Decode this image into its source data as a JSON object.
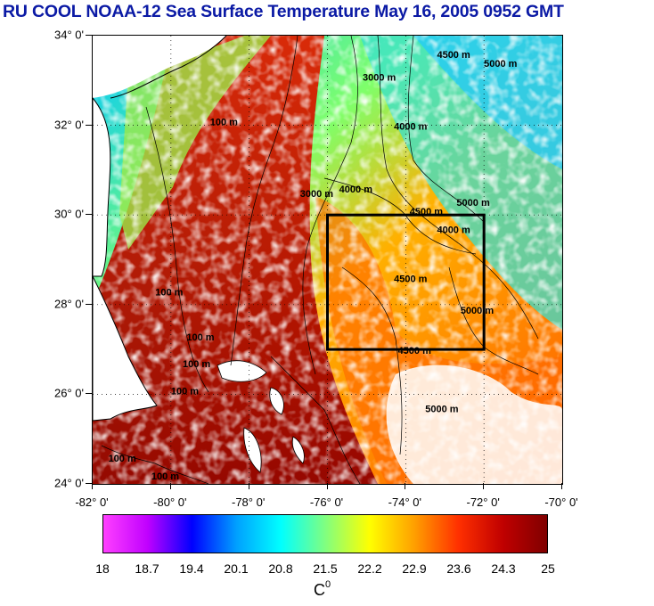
{
  "title": "RU COOL  NOAA-12 Sea Surface Temperature May 16, 2005 0952 GMT",
  "map": {
    "lat_labels": [
      "34° 0'",
      "32° 0'",
      "30° 0'",
      "28° 0'",
      "26° 0'",
      "24° 0'"
    ],
    "lon_labels": [
      "-82° 0'",
      "-80° 0'",
      "-78° 0'",
      "-76° 0'",
      "-74° 0'",
      "-72° 0'",
      "-70° 0'"
    ],
    "lat_range": [
      24,
      34
    ],
    "lon_range": [
      -82,
      -70
    ],
    "box": {
      "lon_min": -76,
      "lon_max": -72,
      "lat_min": 27,
      "lat_max": 30
    },
    "contour_labels": [
      {
        "text": "3000 m",
        "lon": -75.1,
        "lat": 33.0
      },
      {
        "text": "4500 m",
        "lon": -73.2,
        "lat": 33.5
      },
      {
        "text": "5000 m",
        "lon": -72.0,
        "lat": 33.3
      },
      {
        "text": "4000 m",
        "lon": -74.3,
        "lat": 31.9
      },
      {
        "text": "100 m",
        "lon": -79.0,
        "lat": 32.0
      },
      {
        "text": "4000 m",
        "lon": -75.7,
        "lat": 30.5
      },
      {
        "text": "3000 m",
        "lon": -76.7,
        "lat": 30.4
      },
      {
        "text": "4500 m",
        "lon": -73.9,
        "lat": 30.0
      },
      {
        "text": "5000 m",
        "lon": -72.7,
        "lat": 30.2
      },
      {
        "text": "4000 m",
        "lon": -73.2,
        "lat": 29.6
      },
      {
        "text": "4500 m",
        "lon": -74.3,
        "lat": 28.5
      },
      {
        "text": "5000 m",
        "lon": -72.6,
        "lat": 27.8
      },
      {
        "text": "100 m",
        "lon": -80.4,
        "lat": 28.2
      },
      {
        "text": "100 m",
        "lon": -79.6,
        "lat": 27.2
      },
      {
        "text": "100 m",
        "lon": -79.7,
        "lat": 26.6
      },
      {
        "text": "100 m",
        "lon": -80.0,
        "lat": 26.0
      },
      {
        "text": "4500 m",
        "lon": -74.2,
        "lat": 26.9
      },
      {
        "text": "5000 m",
        "lon": -73.5,
        "lat": 25.6
      },
      {
        "text": "100 m",
        "lon": -81.6,
        "lat": 24.5
      },
      {
        "text": "100 m",
        "lon": -80.5,
        "lat": 24.1
      }
    ]
  },
  "colorbar": {
    "labels": [
      "18",
      "18.7",
      "19.4",
      "20.1",
      "20.8",
      "21.5",
      "22.2",
      "22.9",
      "23.6",
      "24.3",
      "25"
    ],
    "unit_main": "C",
    "unit_sup": "0",
    "colors": [
      "#ff40ff",
      "#c000ff",
      "#0000ff",
      "#00a0ff",
      "#00ffff",
      "#80ff80",
      "#ffff00",
      "#ffa000",
      "#ff3000",
      "#c00000",
      "#800000"
    ]
  }
}
